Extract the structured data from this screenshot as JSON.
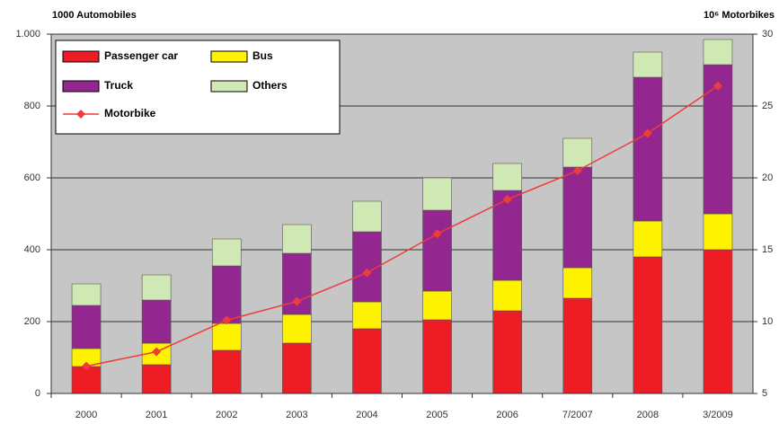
{
  "chart_data": {
    "type": "bar",
    "stacked": true,
    "ylabel": "1000 Automobiles",
    "y2label": "10⁶ Motorbikes",
    "categories": [
      "2000",
      "2001",
      "2002",
      "2003",
      "2004",
      "2005",
      "2006",
      "7/2007",
      "2008",
      "3/2009"
    ],
    "series": [
      {
        "name": "Passenger car",
        "color": "#ee1c24",
        "values": [
          75,
          80,
          120,
          140,
          180,
          205,
          230,
          265,
          380,
          400
        ]
      },
      {
        "name": "Bus",
        "color": "#fff200",
        "values": [
          50,
          60,
          75,
          80,
          75,
          80,
          85,
          85,
          100,
          100
        ]
      },
      {
        "name": "Truck",
        "color": "#93278f",
        "values": [
          120,
          120,
          160,
          170,
          195,
          225,
          250,
          280,
          400,
          415
        ]
      },
      {
        "name": "Others",
        "color": "#cfe8b4",
        "values": [
          60,
          70,
          75,
          80,
          85,
          90,
          75,
          80,
          70,
          70
        ]
      },
      {
        "name": "Motorbike",
        "color": "#ee3b3b",
        "type": "line",
        "axis": "y2",
        "values": [
          6.9,
          7.9,
          10.1,
          11.4,
          13.4,
          16.1,
          18.5,
          20.5,
          23.1,
          26.4
        ]
      }
    ],
    "ylim": [
      0,
      1000
    ],
    "yticks": [
      0,
      200,
      400,
      600,
      800,
      {
        "value": 1000,
        "label": "1.000"
      }
    ],
    "y2lim": [
      5,
      30
    ],
    "y2ticks": [
      5,
      10,
      15,
      20,
      25,
      30
    ],
    "grid": true
  }
}
